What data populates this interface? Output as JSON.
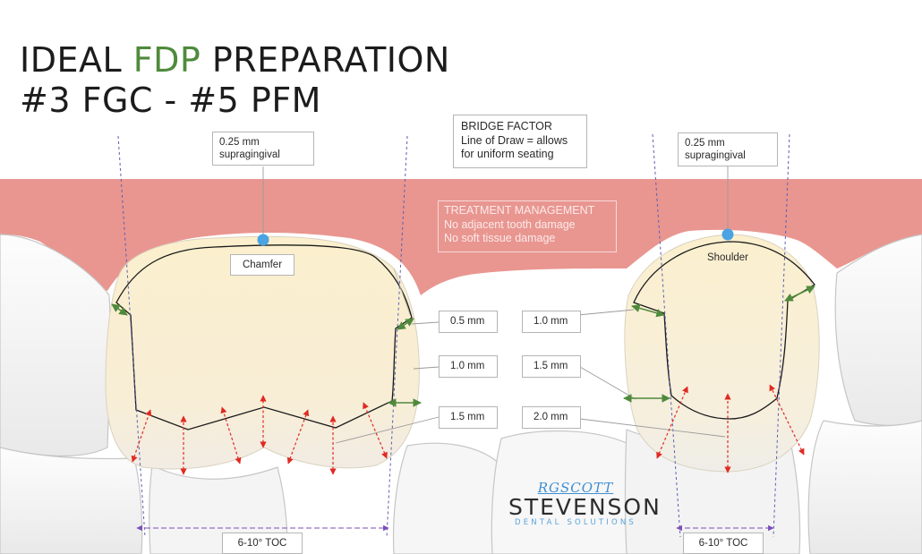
{
  "title": {
    "line1_prefix": "IDEAL ",
    "line1_accent": "FDP",
    "line1_suffix": " PREPARATION",
    "line2": "#3 FGC - #5 PFM"
  },
  "callouts": {
    "supragingival_left": [
      "0.25 mm",
      "supragingival"
    ],
    "supragingival_right": [
      "0.25 mm",
      "supragingival"
    ],
    "bridge_factor": [
      "BRIDGE FACTOR",
      "Line of Draw = allows",
      "for uniform seating"
    ],
    "treatment_management": [
      "TREATMENT MANAGEMENT",
      "No adjacent tooth damage",
      "No soft tissue damage"
    ]
  },
  "finish_lines": {
    "left": "Chamfer",
    "right": "Shoulder"
  },
  "reduction_left": [
    "0.5 mm",
    "1.0 mm",
    "1.5 mm"
  ],
  "reduction_right": [
    "1.0 mm",
    "1.5 mm",
    "2.0 mm"
  ],
  "toc_labels": {
    "left": "6-10° TOC",
    "right": "6-10° TOC"
  },
  "logo": {
    "signature": "RGSCOTT",
    "brand": "STEVENSON",
    "tagline": "DENTAL SOLUTIONS"
  },
  "colors": {
    "gingiva": "#e99690",
    "enamel": "#fbf0cd",
    "tooth_outline": "#1a1a1a",
    "green_arrow": "#4f8a3c",
    "red_arrow": "#e02a22",
    "toc_arrow": "#7b4fb8",
    "contact_dot": "#4ba3e3",
    "title_accent": "#4f8a3c"
  }
}
